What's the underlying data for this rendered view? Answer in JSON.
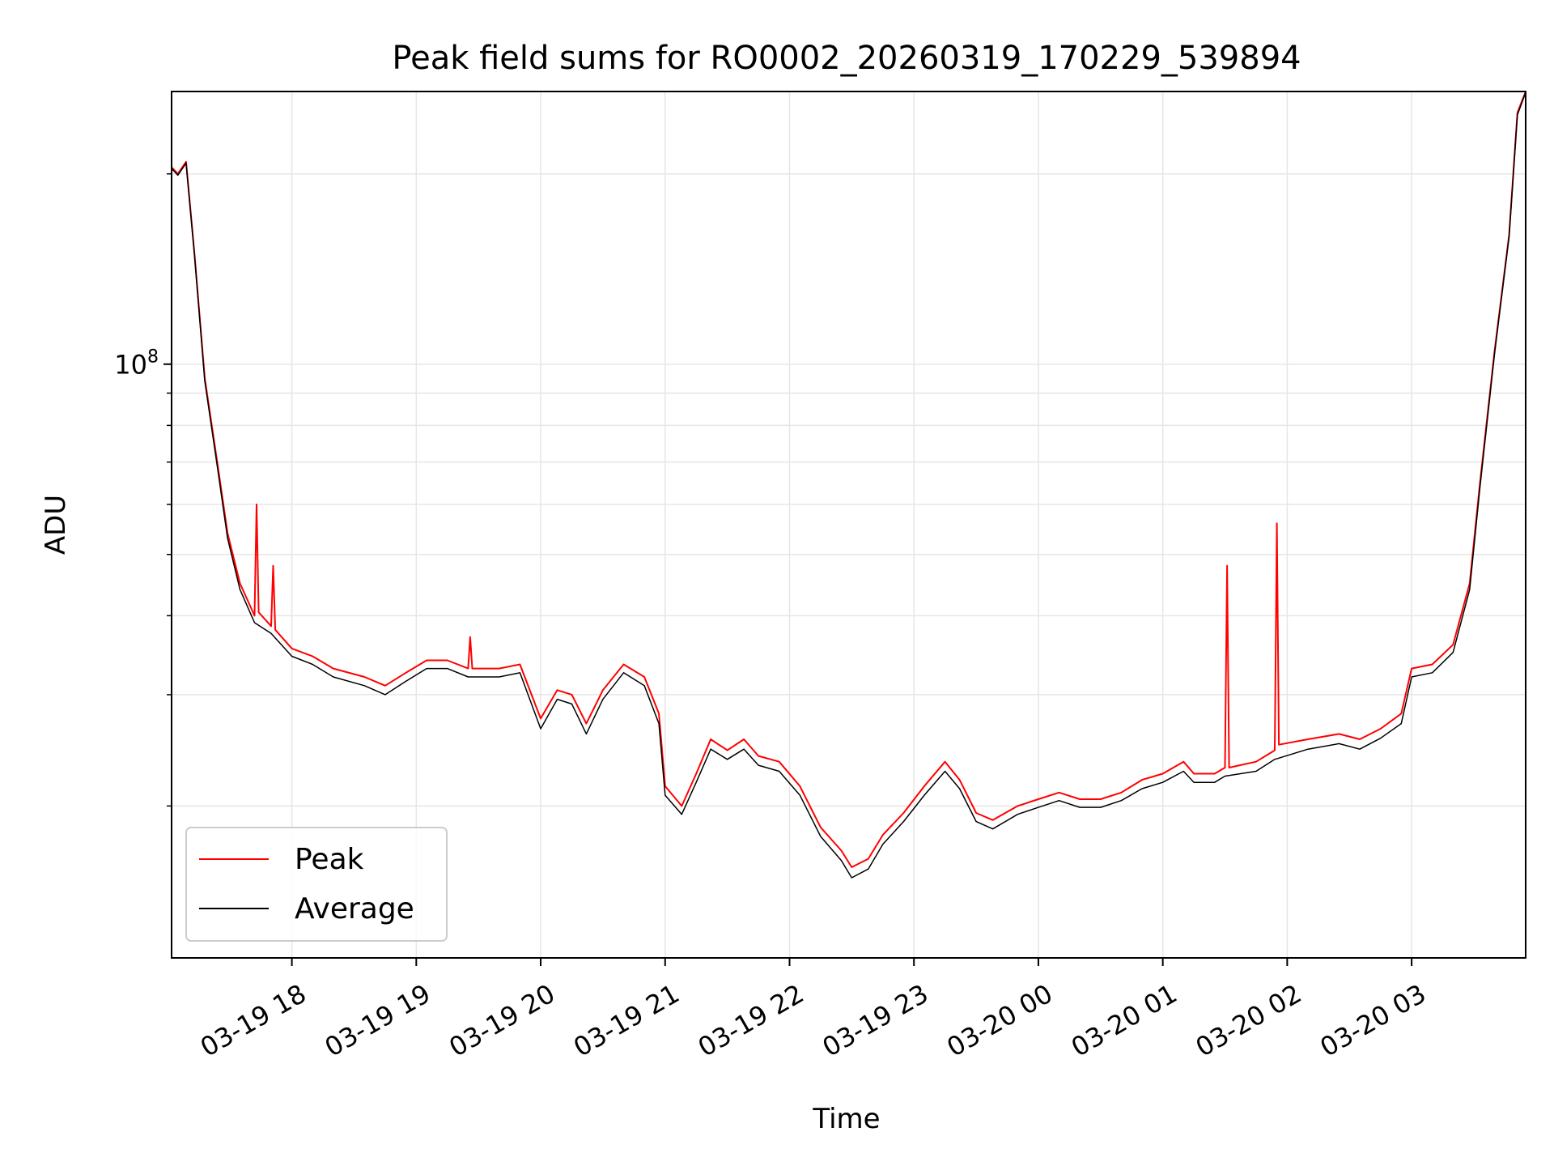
{
  "chart_data": {
    "type": "line",
    "title": "Peak field sums for RO0002_20260319_170229_539894",
    "xlabel": "Time",
    "ylabel": "ADU",
    "yscale": "log",
    "xlim": [
      "03-19 17:02",
      "03-20 03:55"
    ],
    "ylim": [
      11500000,
      270000000
    ],
    "x_ticks": [
      "03-19 18",
      "03-19 19",
      "03-19 20",
      "03-19 21",
      "03-19 22",
      "03-19 23",
      "03-20 00",
      "03-20 01",
      "03-20 02",
      "03-20 03"
    ],
    "y_ticks": [
      {
        "value": 100000000,
        "base": "10",
        "exp": "8"
      }
    ],
    "grid": true,
    "legend": "lower-left",
    "series": [
      {
        "name": "Peak",
        "color": "#ff0000",
        "points": [
          [
            "03-19 17:02",
            205000000
          ],
          [
            "03-19 17:05",
            200000000
          ],
          [
            "03-19 17:09",
            209000000
          ],
          [
            "03-19 17:13",
            150000000
          ],
          [
            "03-19 17:18",
            95000000
          ],
          [
            "03-19 17:24",
            70000000
          ],
          [
            "03-19 17:29",
            54000000
          ],
          [
            "03-19 17:35",
            45000000
          ],
          [
            "03-19 17:42",
            40000000
          ],
          [
            "03-19 17:43",
            60000000
          ],
          [
            "03-19 17:44",
            40500000
          ],
          [
            "03-19 17:50",
            38500000
          ],
          [
            "03-19 17:51",
            48000000
          ],
          [
            "03-19 17:52",
            38000000
          ],
          [
            "03-19 18:00",
            35500000
          ],
          [
            "03-19 18:10",
            34500000
          ],
          [
            "03-19 18:20",
            33000000
          ],
          [
            "03-19 18:35",
            32000000
          ],
          [
            "03-19 18:45",
            31000000
          ],
          [
            "03-19 18:55",
            32500000
          ],
          [
            "03-19 19:05",
            34000000
          ],
          [
            "03-19 19:15",
            34000000
          ],
          [
            "03-19 19:25",
            33000000
          ],
          [
            "03-19 19:26",
            37000000
          ],
          [
            "03-19 19:27",
            33000000
          ],
          [
            "03-19 19:40",
            33000000
          ],
          [
            "03-19 19:50",
            33500000
          ],
          [
            "03-19 20:00",
            27500000
          ],
          [
            "03-19 20:08",
            30500000
          ],
          [
            "03-19 20:15",
            30000000
          ],
          [
            "03-19 20:22",
            27000000
          ],
          [
            "03-19 20:30",
            30500000
          ],
          [
            "03-19 20:40",
            33500000
          ],
          [
            "03-19 20:50",
            32000000
          ],
          [
            "03-19 20:57",
            28000000
          ],
          [
            "03-19 21:00",
            21500000
          ],
          [
            "03-19 21:08",
            20000000
          ],
          [
            "03-19 21:15",
            22500000
          ],
          [
            "03-19 21:22",
            25500000
          ],
          [
            "03-19 21:30",
            24500000
          ],
          [
            "03-19 21:38",
            25500000
          ],
          [
            "03-19 21:45",
            24000000
          ],
          [
            "03-19 21:55",
            23500000
          ],
          [
            "03-19 22:05",
            21500000
          ],
          [
            "03-19 22:15",
            18500000
          ],
          [
            "03-19 22:25",
            17000000
          ],
          [
            "03-19 22:30",
            16000000
          ],
          [
            "03-19 22:38",
            16500000
          ],
          [
            "03-19 22:45",
            18000000
          ],
          [
            "03-19 22:55",
            19500000
          ],
          [
            "03-19 23:05",
            21500000
          ],
          [
            "03-19 23:15",
            23500000
          ],
          [
            "03-19 23:22",
            22000000
          ],
          [
            "03-19 23:30",
            19500000
          ],
          [
            "03-19 23:38",
            19000000
          ],
          [
            "03-19 23:50",
            20000000
          ],
          [
            "03-20 00:00",
            20500000
          ],
          [
            "03-20 00:10",
            21000000
          ],
          [
            "03-20 00:20",
            20500000
          ],
          [
            "03-20 00:30",
            20500000
          ],
          [
            "03-20 00:40",
            21000000
          ],
          [
            "03-20 00:50",
            22000000
          ],
          [
            "03-20 01:00",
            22500000
          ],
          [
            "03-20 01:10",
            23500000
          ],
          [
            "03-20 01:15",
            22500000
          ],
          [
            "03-20 01:25",
            22500000
          ],
          [
            "03-20 01:30",
            23000000
          ],
          [
            "03-20 01:31",
            48000000
          ],
          [
            "03-20 01:32",
            23000000
          ],
          [
            "03-20 01:45",
            23500000
          ],
          [
            "03-20 01:54",
            24500000
          ],
          [
            "03-20 01:55",
            56000000
          ],
          [
            "03-20 01:56",
            25000000
          ],
          [
            "03-20 02:10",
            25500000
          ],
          [
            "03-20 02:25",
            26000000
          ],
          [
            "03-20 02:35",
            25500000
          ],
          [
            "03-20 02:45",
            26500000
          ],
          [
            "03-20 02:55",
            28000000
          ],
          [
            "03-20 03:00",
            33000000
          ],
          [
            "03-20 03:10",
            33500000
          ],
          [
            "03-20 03:20",
            36000000
          ],
          [
            "03-20 03:28",
            45000000
          ],
          [
            "03-20 03:33",
            65000000
          ],
          [
            "03-20 03:40",
            105000000
          ],
          [
            "03-20 03:47",
            160000000
          ],
          [
            "03-20 03:51",
            250000000
          ],
          [
            "03-20 03:55",
            270000000
          ]
        ]
      },
      {
        "name": "Average",
        "color": "#000000",
        "points": [
          [
            "03-19 17:02",
            204000000
          ],
          [
            "03-19 17:05",
            199000000
          ],
          [
            "03-19 17:09",
            208000000
          ],
          [
            "03-19 17:13",
            149000000
          ],
          [
            "03-19 17:18",
            94000000
          ],
          [
            "03-19 17:24",
            69000000
          ],
          [
            "03-19 17:29",
            53000000
          ],
          [
            "03-19 17:35",
            44000000
          ],
          [
            "03-19 17:42",
            39000000
          ],
          [
            "03-19 17:50",
            37500000
          ],
          [
            "03-19 18:00",
            34500000
          ],
          [
            "03-19 18:10",
            33500000
          ],
          [
            "03-19 18:20",
            32000000
          ],
          [
            "03-19 18:35",
            31000000
          ],
          [
            "03-19 18:45",
            30000000
          ],
          [
            "03-19 18:55",
            31500000
          ],
          [
            "03-19 19:05",
            33000000
          ],
          [
            "03-19 19:15",
            33000000
          ],
          [
            "03-19 19:25",
            32000000
          ],
          [
            "03-19 19:40",
            32000000
          ],
          [
            "03-19 19:50",
            32500000
          ],
          [
            "03-19 20:00",
            26500000
          ],
          [
            "03-19 20:08",
            29500000
          ],
          [
            "03-19 20:15",
            29000000
          ],
          [
            "03-19 20:22",
            26000000
          ],
          [
            "03-19 20:30",
            29500000
          ],
          [
            "03-19 20:40",
            32500000
          ],
          [
            "03-19 20:50",
            31000000
          ],
          [
            "03-19 20:57",
            27000000
          ],
          [
            "03-19 21:00",
            20800000
          ],
          [
            "03-19 21:08",
            19400000
          ],
          [
            "03-19 21:15",
            21800000
          ],
          [
            "03-19 21:22",
            24600000
          ],
          [
            "03-19 21:30",
            23700000
          ],
          [
            "03-19 21:38",
            24600000
          ],
          [
            "03-19 21:45",
            23200000
          ],
          [
            "03-19 21:55",
            22700000
          ],
          [
            "03-19 22:05",
            20800000
          ],
          [
            "03-19 22:15",
            17900000
          ],
          [
            "03-19 22:25",
            16400000
          ],
          [
            "03-19 22:30",
            15400000
          ],
          [
            "03-19 22:38",
            15900000
          ],
          [
            "03-19 22:45",
            17400000
          ],
          [
            "03-19 22:55",
            18900000
          ],
          [
            "03-19 23:05",
            20800000
          ],
          [
            "03-19 23:15",
            22700000
          ],
          [
            "03-19 23:22",
            21300000
          ],
          [
            "03-19 23:30",
            18900000
          ],
          [
            "03-19 23:38",
            18400000
          ],
          [
            "03-19 23:50",
            19400000
          ],
          [
            "03-20 00:00",
            19900000
          ],
          [
            "03-20 00:10",
            20400000
          ],
          [
            "03-20 00:20",
            19900000
          ],
          [
            "03-20 00:30",
            19900000
          ],
          [
            "03-20 00:40",
            20400000
          ],
          [
            "03-20 00:50",
            21300000
          ],
          [
            "03-20 01:00",
            21800000
          ],
          [
            "03-20 01:10",
            22700000
          ],
          [
            "03-20 01:15",
            21800000
          ],
          [
            "03-20 01:25",
            21800000
          ],
          [
            "03-20 01:30",
            22300000
          ],
          [
            "03-20 01:45",
            22700000
          ],
          [
            "03-20 01:54",
            23700000
          ],
          [
            "03-20 02:10",
            24600000
          ],
          [
            "03-20 02:25",
            25100000
          ],
          [
            "03-20 02:35",
            24600000
          ],
          [
            "03-20 02:45",
            25600000
          ],
          [
            "03-20 02:55",
            27000000
          ],
          [
            "03-20 03:00",
            32000000
          ],
          [
            "03-20 03:10",
            32500000
          ],
          [
            "03-20 03:20",
            35000000
          ],
          [
            "03-20 03:28",
            44000000
          ],
          [
            "03-20 03:33",
            64000000
          ],
          [
            "03-20 03:40",
            104000000
          ],
          [
            "03-20 03:47",
            159000000
          ],
          [
            "03-20 03:51",
            248000000
          ],
          [
            "03-20 03:55",
            269000000
          ]
        ]
      }
    ]
  }
}
